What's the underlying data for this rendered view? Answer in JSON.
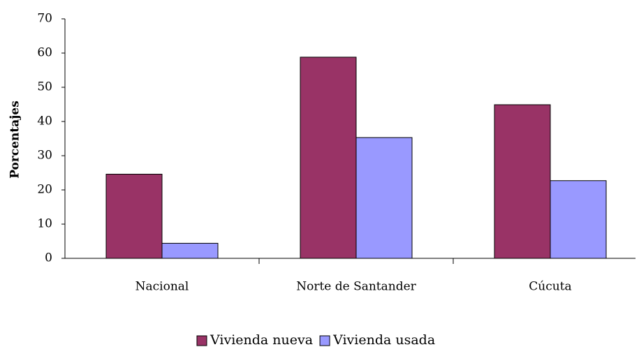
{
  "chart_data": {
    "type": "bar",
    "y_label": "Porcentajes",
    "categories": [
      "Nacional",
      "Norte de Santander",
      "Cúcuta"
    ],
    "series": [
      {
        "name": "Vivienda nueva",
        "color": "#993366",
        "values": [
          24.6,
          58.8,
          44.9
        ]
      },
      {
        "name": "Vivienda usada",
        "color": "#9999ff",
        "values": [
          4.4,
          35.3,
          22.7
        ]
      }
    ],
    "ylim": [
      0,
      70
    ],
    "yticks": [
      0,
      10,
      20,
      30,
      40,
      50,
      60,
      70
    ],
    "grid": false,
    "legend": "bottom"
  }
}
